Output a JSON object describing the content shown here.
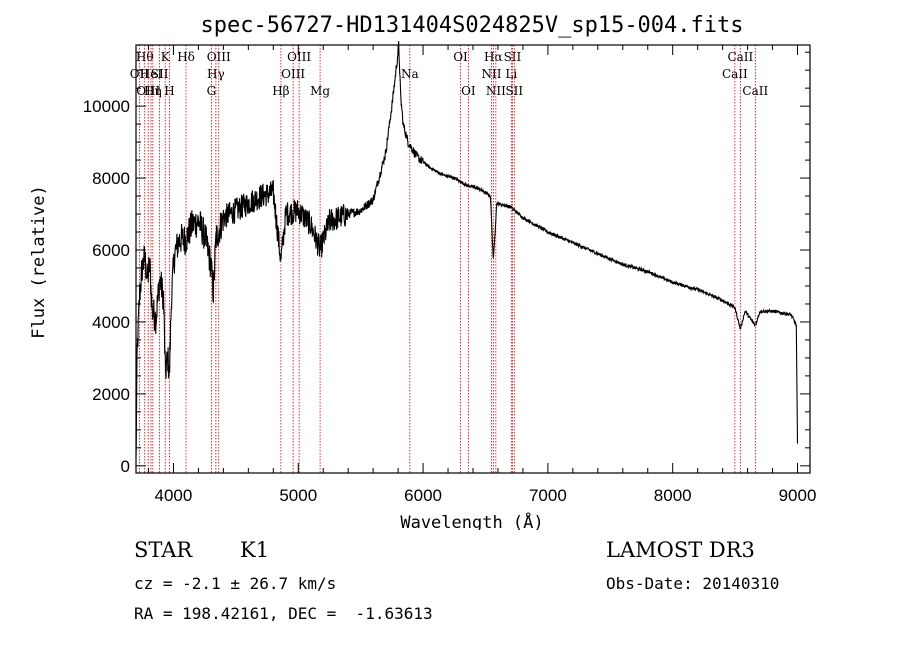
{
  "chart_data": {
    "type": "line",
    "title": "spec-56727-HD131404S024825V_sp15-004.fits",
    "xlabel": "Wavelength (Å)",
    "ylabel": "Flux (relative)",
    "xlim": [
      3700,
      9100
    ],
    "ylim": [
      -200,
      11700
    ],
    "xticks": [
      4000,
      5000,
      6000,
      7000,
      8000,
      9000
    ],
    "yticks": [
      0,
      2000,
      4000,
      6000,
      8000,
      10000
    ],
    "series": [
      {
        "name": "spectrum",
        "anchors": [
          [
            3700,
            100
          ],
          [
            3710,
            3200
          ],
          [
            3730,
            4800
          ],
          [
            3750,
            5500
          ],
          [
            3770,
            5800
          ],
          [
            3790,
            5200
          ],
          [
            3810,
            5600
          ],
          [
            3830,
            4300
          ],
          [
            3860,
            4100
          ],
          [
            3890,
            5200
          ],
          [
            3920,
            4700
          ],
          [
            3935,
            2600
          ],
          [
            3955,
            3000
          ],
          [
            3968,
            2500
          ],
          [
            3985,
            4800
          ],
          [
            4010,
            5900
          ],
          [
            4050,
            6300
          ],
          [
            4100,
            6300
          ],
          [
            4150,
            6700
          ],
          [
            4200,
            6800
          ],
          [
            4250,
            6400
          ],
          [
            4300,
            5600
          ],
          [
            4320,
            4800
          ],
          [
            4340,
            6300
          ],
          [
            4400,
            6900
          ],
          [
            4500,
            7100
          ],
          [
            4600,
            7300
          ],
          [
            4700,
            7500
          ],
          [
            4800,
            7600
          ],
          [
            4861,
            5700
          ],
          [
            4900,
            7000
          ],
          [
            5000,
            7100
          ],
          [
            5100,
            6700
          ],
          [
            5175,
            6000
          ],
          [
            5250,
            6800
          ],
          [
            5400,
            7000
          ],
          [
            5500,
            7100
          ],
          [
            5600,
            7400
          ],
          [
            5700,
            8700
          ],
          [
            5750,
            10000
          ],
          [
            5790,
            11200
          ],
          [
            5805,
            11700
          ],
          [
            5820,
            10300
          ],
          [
            5840,
            9500
          ],
          [
            5880,
            9000
          ],
          [
            5950,
            8600
          ],
          [
            6050,
            8300
          ],
          [
            6150,
            8100
          ],
          [
            6250,
            8000
          ],
          [
            6350,
            7800
          ],
          [
            6450,
            7700
          ],
          [
            6540,
            7500
          ],
          [
            6563,
            5700
          ],
          [
            6590,
            7300
          ],
          [
            6700,
            7200
          ],
          [
            6800,
            6900
          ],
          [
            6900,
            6700
          ],
          [
            7000,
            6500
          ],
          [
            7200,
            6200
          ],
          [
            7400,
            5900
          ],
          [
            7600,
            5600
          ],
          [
            7800,
            5400
          ],
          [
            8000,
            5100
          ],
          [
            8200,
            4900
          ],
          [
            8400,
            4600
          ],
          [
            8498,
            4400
          ],
          [
            8542,
            3800
          ],
          [
            8580,
            4300
          ],
          [
            8662,
            3900
          ],
          [
            8700,
            4300
          ],
          [
            8800,
            4300
          ],
          [
            8950,
            4200
          ],
          [
            8990,
            3900
          ],
          [
            9000,
            600
          ]
        ]
      }
    ],
    "lines": [
      {
        "wl": 3727,
        "label": "OII",
        "row": 1
      },
      {
        "wl": 3770,
        "label": "Hθ",
        "row": 0
      },
      {
        "wl": 3798,
        "label": "OIII",
        "row": 2
      },
      {
        "wl": 3835,
        "label": "Hη",
        "row": 2
      },
      {
        "wl": 3820,
        "label": "HeI",
        "row": 1
      },
      {
        "wl": 3889,
        "label": "SII",
        "row": 1
      },
      {
        "wl": 3934,
        "label": "K",
        "row": 0
      },
      {
        "wl": 3968,
        "label": "H",
        "row": 2
      },
      {
        "wl": 4101,
        "label": "Hδ",
        "row": 0
      },
      {
        "wl": 4304,
        "label": "G",
        "row": 2
      },
      {
        "wl": 4340,
        "label": "Hγ",
        "row": 1
      },
      {
        "wl": 4363,
        "label": "OIII",
        "row": 0
      },
      {
        "wl": 4861,
        "label": "Hβ",
        "row": 2
      },
      {
        "wl": 4959,
        "label": "OIII",
        "row": 1
      },
      {
        "wl": 5007,
        "label": "OIII",
        "row": 0
      },
      {
        "wl": 5175,
        "label": "Mg",
        "row": 2
      },
      {
        "wl": 5894,
        "label": "Na",
        "row": 1
      },
      {
        "wl": 6300,
        "label": "OI",
        "row": 0
      },
      {
        "wl": 6363,
        "label": "OI",
        "row": 2
      },
      {
        "wl": 6548,
        "label": "NII",
        "row": 1
      },
      {
        "wl": 6563,
        "label": "Hα",
        "row": 0
      },
      {
        "wl": 6583,
        "label": "NII",
        "row": 2
      },
      {
        "wl": 6707,
        "label": "Li",
        "row": 1
      },
      {
        "wl": 6716,
        "label": "SII",
        "row": 0
      },
      {
        "wl": 6731,
        "label": "SII",
        "row": 2
      },
      {
        "wl": 8498,
        "label": "CaII",
        "row": 1
      },
      {
        "wl": 8542,
        "label": "CaII",
        "row": 0
      },
      {
        "wl": 8662,
        "label": "CaII",
        "row": 2
      }
    ]
  },
  "info": {
    "class": "STAR",
    "subclass": "K1",
    "survey": "LAMOST DR3",
    "cz": "cz = -2.1 ± 26.7 km/s",
    "obsdate": "Obs-Date: 20140310",
    "coords": "RA = 198.42161, DEC =  -1.63613"
  },
  "colors": {
    "axis": "#000000",
    "spectrum": "#000000",
    "lines": "#cc0000"
  }
}
